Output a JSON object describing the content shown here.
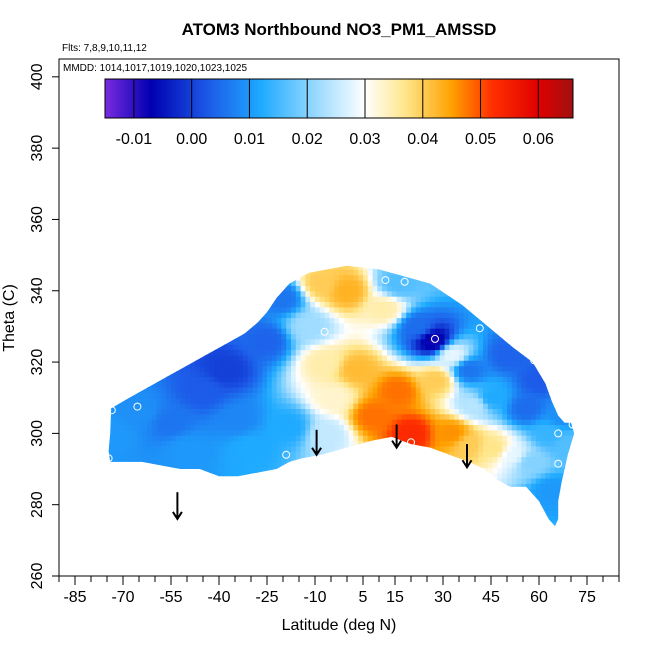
{
  "chart_data": {
    "type": "heatmap",
    "title": "ATOM3 Northbound NO3_PM1_AMSSD",
    "flights_label": "Flts: 7,8,9,10,11,12",
    "dates_label": "MMDD: 1014,1017,1019,1020,1023,1025",
    "xlabel": "Latitude (deg N)",
    "ylabel": "Theta (C)",
    "xlim": [
      -90,
      85
    ],
    "ylim": [
      260,
      405
    ],
    "x_ticks": [
      -85,
      -70,
      -55,
      -40,
      -25,
      -10,
      5,
      15,
      30,
      45,
      60,
      75
    ],
    "x_tick_labels": [
      "-85",
      "-70",
      "-55",
      "-40",
      "-25",
      "-10",
      "5",
      "15",
      "30",
      "45",
      "60",
      "75"
    ],
    "y_ticks": [
      260,
      280,
      300,
      320,
      340,
      360,
      380,
      400
    ],
    "y_tick_labels": [
      "260",
      "280",
      "300",
      "320",
      "340",
      "360",
      "380",
      "400"
    ],
    "colorbar": {
      "range": [
        -0.015,
        0.066
      ],
      "ticks": [
        -0.01,
        0.0,
        0.01,
        0.02,
        0.03,
        0.04,
        0.05,
        0.06
      ],
      "tick_labels": [
        "-0.01",
        "0.00",
        "0.01",
        "0.02",
        "0.03",
        "0.04",
        "0.05",
        "0.06"
      ],
      "stops": [
        {
          "v": -0.015,
          "color": "#7a2be0"
        },
        {
          "v": -0.007,
          "color": "#0000b0"
        },
        {
          "v": 0.003,
          "color": "#1d5be8"
        },
        {
          "v": 0.012,
          "color": "#1eaaff"
        },
        {
          "v": 0.022,
          "color": "#9fdcff"
        },
        {
          "v": 0.03,
          "color": "#ffffff"
        },
        {
          "v": 0.037,
          "color": "#ffe68a"
        },
        {
          "v": 0.045,
          "color": "#ffa100"
        },
        {
          "v": 0.052,
          "color": "#ff3000"
        },
        {
          "v": 0.06,
          "color": "#e00000"
        },
        {
          "v": 0.066,
          "color": "#a01010"
        }
      ]
    },
    "domain_outline": [
      [
        -73.7,
        307
      ],
      [
        -68,
        310
      ],
      [
        -62,
        313
      ],
      [
        -56,
        316
      ],
      [
        -50,
        319
      ],
      [
        -44,
        322
      ],
      [
        -38,
        325
      ],
      [
        -32,
        328
      ],
      [
        -28,
        331
      ],
      [
        -25,
        334
      ],
      [
        -22,
        338
      ],
      [
        -18,
        342
      ],
      [
        -12,
        345
      ],
      [
        0,
        347
      ],
      [
        10,
        346
      ],
      [
        18,
        344
      ],
      [
        26,
        342
      ],
      [
        36,
        336
      ],
      [
        44,
        330
      ],
      [
        52,
        324
      ],
      [
        58,
        320
      ],
      [
        62,
        314
      ],
      [
        64,
        309
      ],
      [
        66,
        305
      ],
      [
        68,
        303
      ],
      [
        70,
        303
      ],
      [
        71,
        300
      ],
      [
        69,
        294
      ],
      [
        68,
        290
      ],
      [
        67,
        286
      ],
      [
        66,
        281
      ],
      [
        66,
        276
      ],
      [
        65,
        274
      ],
      [
        63,
        276
      ],
      [
        60,
        281
      ],
      [
        56,
        285
      ],
      [
        51,
        285
      ],
      [
        47,
        287
      ],
      [
        43,
        290
      ],
      [
        38,
        292
      ],
      [
        32,
        294
      ],
      [
        26,
        296
      ],
      [
        20,
        297
      ],
      [
        14,
        299
      ],
      [
        8,
        298
      ],
      [
        0,
        296
      ],
      [
        -8,
        294
      ],
      [
        -14,
        293
      ],
      [
        -18,
        292
      ],
      [
        -22,
        290
      ],
      [
        -28,
        289
      ],
      [
        -34,
        288
      ],
      [
        -40,
        288
      ],
      [
        -46,
        290
      ],
      [
        -52,
        290
      ],
      [
        -58,
        291
      ],
      [
        -64,
        292
      ],
      [
        -70,
        292
      ],
      [
        -74,
        292
      ],
      [
        -74.5,
        295
      ],
      [
        -74,
        300
      ]
    ],
    "field_points": [
      {
        "lat": -73,
        "theta": 300,
        "value": 0.01
      },
      {
        "lat": -65,
        "theta": 306,
        "value": 0.009
      },
      {
        "lat": -55,
        "theta": 303,
        "value": 0.006
      },
      {
        "lat": -50,
        "theta": 296,
        "value": 0.01
      },
      {
        "lat": -45,
        "theta": 312,
        "value": 0.003
      },
      {
        "lat": -38,
        "theta": 318,
        "value": 0.0
      },
      {
        "lat": -34,
        "theta": 304,
        "value": 0.008
      },
      {
        "lat": -30,
        "theta": 296,
        "value": 0.012
      },
      {
        "lat": -25,
        "theta": 326,
        "value": 0.004
      },
      {
        "lat": -20,
        "theta": 338,
        "value": 0.006
      },
      {
        "lat": -18,
        "theta": 302,
        "value": 0.012
      },
      {
        "lat": -12,
        "theta": 330,
        "value": 0.022
      },
      {
        "lat": -8,
        "theta": 342,
        "value": 0.04
      },
      {
        "lat": -7,
        "theta": 320,
        "value": 0.035
      },
      {
        "lat": -6,
        "theta": 300,
        "value": 0.025
      },
      {
        "lat": -4,
        "theta": 310,
        "value": 0.033
      },
      {
        "lat": 0,
        "theta": 340,
        "value": 0.043
      },
      {
        "lat": 3,
        "theta": 318,
        "value": 0.042
      },
      {
        "lat": 8,
        "theta": 305,
        "value": 0.048
      },
      {
        "lat": 12,
        "theta": 335,
        "value": 0.035
      },
      {
        "lat": 16,
        "theta": 312,
        "value": 0.048
      },
      {
        "lat": 16,
        "theta": 342,
        "value": 0.016
      },
      {
        "lat": 20,
        "theta": 300,
        "value": 0.053
      },
      {
        "lat": 22,
        "theta": 330,
        "value": 0.005
      },
      {
        "lat": 27,
        "theta": 326,
        "value": -0.008
      },
      {
        "lat": 28,
        "theta": 315,
        "value": 0.04
      },
      {
        "lat": 33,
        "theta": 300,
        "value": 0.046
      },
      {
        "lat": 33,
        "theta": 322,
        "value": 0.028
      },
      {
        "lat": 38,
        "theta": 318,
        "value": 0.006
      },
      {
        "lat": 38,
        "theta": 297,
        "value": 0.04
      },
      {
        "lat": 40,
        "theta": 308,
        "value": 0.024
      },
      {
        "lat": 45,
        "theta": 310,
        "value": 0.012
      },
      {
        "lat": 46,
        "theta": 296,
        "value": 0.037
      },
      {
        "lat": 50,
        "theta": 322,
        "value": 0.004
      },
      {
        "lat": 52,
        "theta": 294,
        "value": 0.028
      },
      {
        "lat": 56,
        "theta": 307,
        "value": 0.005
      },
      {
        "lat": 57,
        "theta": 292,
        "value": 0.02
      },
      {
        "lat": 60,
        "theta": 315,
        "value": 0.003
      },
      {
        "lat": 63,
        "theta": 300,
        "value": 0.014
      },
      {
        "lat": 64,
        "theta": 284,
        "value": 0.01
      },
      {
        "lat": 67,
        "theta": 305,
        "value": 0.009
      },
      {
        "lat": 69,
        "theta": 297,
        "value": 0.016
      }
    ],
    "sample_points": [
      {
        "lat": -73.5,
        "theta": 306.5
      },
      {
        "lat": -65.5,
        "theta": 307.5
      },
      {
        "lat": -74.5,
        "theta": 293
      },
      {
        "lat": -19,
        "theta": 294
      },
      {
        "lat": -7,
        "theta": 328.5
      },
      {
        "lat": 12,
        "theta": 343
      },
      {
        "lat": 18,
        "theta": 342.5
      },
      {
        "lat": 27.5,
        "theta": 326.5
      },
      {
        "lat": 20,
        "theta": 297.5
      },
      {
        "lat": 41.5,
        "theta": 329.5
      },
      {
        "lat": 58.5,
        "theta": 320.5
      },
      {
        "lat": 65.5,
        "theta": 309
      },
      {
        "lat": 66,
        "theta": 300
      },
      {
        "lat": 66,
        "theta": 291.5
      },
      {
        "lat": 70.5,
        "theta": 302.5
      }
    ],
    "arrows": [
      {
        "lat": -53,
        "theta_top": 283.5,
        "theta_bottom": 276
      },
      {
        "lat": -9.5,
        "theta_top": 301,
        "theta_bottom": 294
      },
      {
        "lat": 15.5,
        "theta_top": 302.5,
        "theta_bottom": 296
      },
      {
        "lat": 37.5,
        "theta_top": 297,
        "theta_bottom": 290.5
      }
    ]
  }
}
